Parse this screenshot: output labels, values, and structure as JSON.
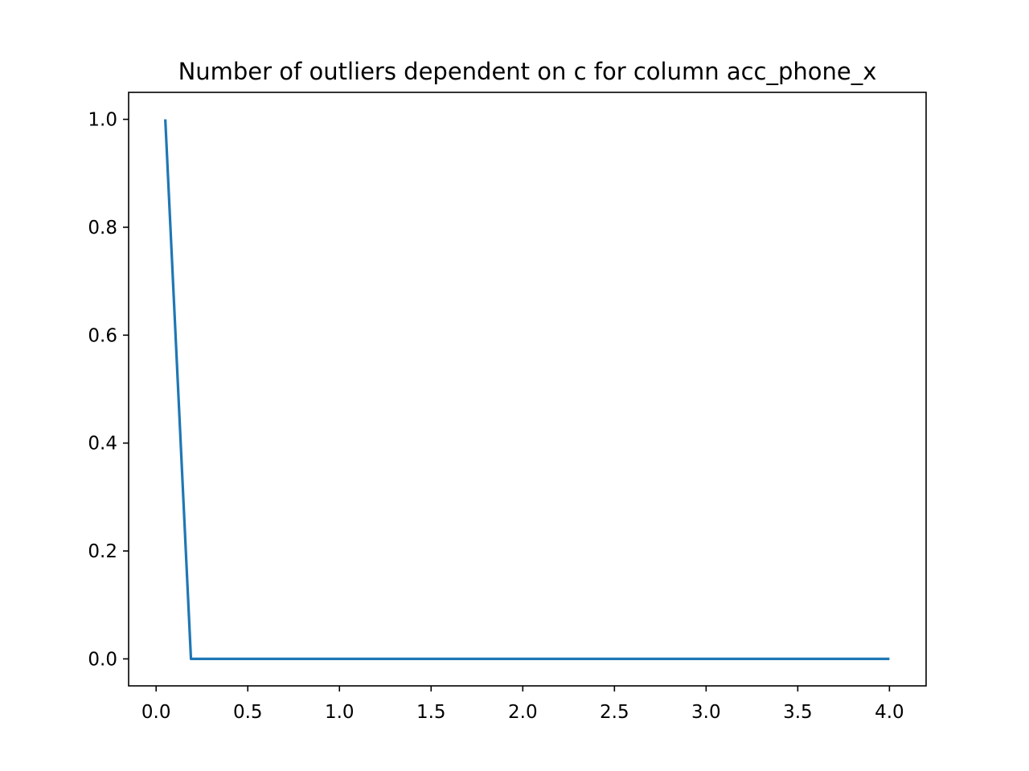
{
  "chart_data": {
    "type": "line",
    "title": "Number of outliers dependent on c for column acc_phone_x",
    "xlabel": "",
    "ylabel": "",
    "xlim": [
      -0.15,
      4.2
    ],
    "ylim": [
      -0.05,
      1.05
    ],
    "x_ticks": [
      0.0,
      0.5,
      1.0,
      1.5,
      2.0,
      2.5,
      3.0,
      3.5,
      4.0
    ],
    "x_tick_labels": [
      "0.0",
      "0.5",
      "1.0",
      "1.5",
      "2.0",
      "2.5",
      "3.0",
      "3.5",
      "4.0"
    ],
    "y_ticks": [
      0.0,
      0.2,
      0.4,
      0.6,
      0.8,
      1.0
    ],
    "y_tick_labels": [
      "0.0",
      "0.2",
      "0.4",
      "0.6",
      "0.8",
      "1.0"
    ],
    "grid": false,
    "series": [
      {
        "color": "#1f77b4",
        "x": [
          0.05,
          0.19,
          0.5,
          1.0,
          1.5,
          2.0,
          2.5,
          3.0,
          3.5,
          4.0
        ],
        "y": [
          1.0,
          0.0,
          0.0,
          0.0,
          0.0,
          0.0,
          0.0,
          0.0,
          0.0,
          0.0
        ]
      }
    ]
  }
}
